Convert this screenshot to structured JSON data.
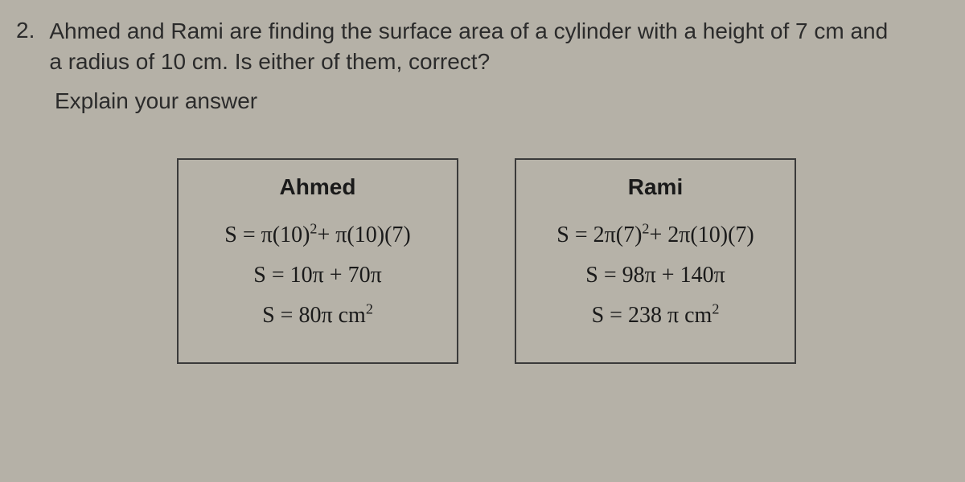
{
  "page": {
    "background_color": "#b5b1a7",
    "text_color": "#2b2b2b",
    "box_border_color": "#3a3a3a",
    "body_font": "Arial",
    "math_font": "Times New Roman"
  },
  "question": {
    "number": "2.",
    "line1": "Ahmed and Rami are finding the surface area of a cylinder with a height of 7 cm and",
    "line2": "a radius of 10 cm. Is either of them, correct?",
    "explain": "Explain your answer"
  },
  "workings": {
    "left": {
      "name": "Ahmed",
      "eq1_html": "S = π(10)<sup>2</sup>+ π(10)(7)",
      "eq2_html": "S = 10π + 70π",
      "eq3_html": "S = 80π cm<sup>2</sup>"
    },
    "right": {
      "name": "Rami",
      "eq1_html": "S = 2π(7)<sup>2</sup>+ 2π(10)(7)",
      "eq2_html": "S = 98π + 140π",
      "eq3_html": "S = 238 π cm<sup>2</sup>"
    }
  }
}
